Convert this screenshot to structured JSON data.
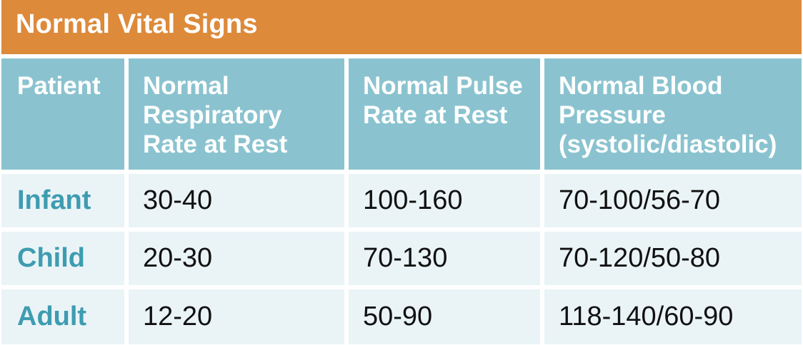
{
  "title": "Normal Vital Signs",
  "colors": {
    "title_bar": "#dd8a3a",
    "header_bg": "#8ac3cf",
    "row_bg": "#eaf4f7",
    "row_label": "#3e9cb1"
  },
  "table": {
    "headers": [
      "Patient",
      "Normal\nRespiratory\nRate at Rest",
      "Normal Pulse\nRate at Rest",
      "Normal Blood\nPressure\n(systolic/diastolic)"
    ],
    "rows": [
      {
        "patient": "Infant",
        "respiratory": "30-40",
        "pulse": "100-160",
        "blood_pressure": "70-100/56-70"
      },
      {
        "patient": "Child",
        "respiratory": "20-30",
        "pulse": "70-130",
        "blood_pressure": "70-120/50-80"
      },
      {
        "patient": "Adult",
        "respiratory": "12-20",
        "pulse": "50-90",
        "blood_pressure": "118-140/60-90"
      }
    ]
  }
}
